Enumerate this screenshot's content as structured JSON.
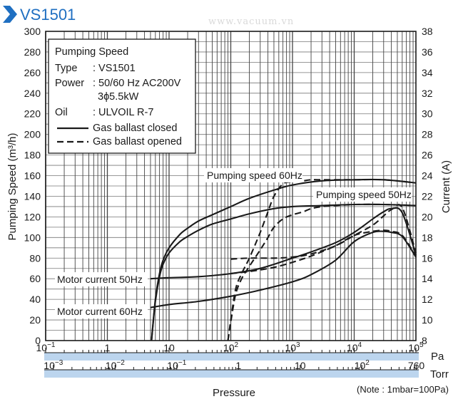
{
  "header": {
    "title": "VS1501",
    "watermark": "www.vacuum.vn"
  },
  "chart_data": {
    "type": "line",
    "title": "VS1501",
    "xlabel": "Pressure",
    "x_units_pa": "Pa",
    "x_units_torr": "Torr",
    "ylabel_left": "Pumping Speed (m³/h)",
    "ylabel_right": "Current (A)",
    "x_scale": "log",
    "xlim_pa": [
      0.1,
      100000
    ],
    "ylim_left": [
      0,
      300
    ],
    "ylim_right": [
      8,
      38
    ],
    "grid": true,
    "pa_ticks": [
      {
        "value": 0.1,
        "base": "10",
        "exp": "−1"
      },
      {
        "value": 1,
        "base": "1",
        "exp": ""
      },
      {
        "value": 10,
        "base": "10",
        "exp": ""
      },
      {
        "value": 100,
        "base": "10",
        "exp": "2"
      },
      {
        "value": 1000,
        "base": "10",
        "exp": "3"
      },
      {
        "value": 10000,
        "base": "10",
        "exp": "4"
      },
      {
        "value": 100000,
        "base": "10",
        "exp": "5"
      }
    ],
    "torr_ticks": [
      {
        "value": 0.001,
        "base": "10",
        "exp": "−3"
      },
      {
        "value": 0.01,
        "base": "10",
        "exp": "−2"
      },
      {
        "value": 0.1,
        "base": "10",
        "exp": "−1"
      },
      {
        "value": 1,
        "base": "1",
        "exp": ""
      },
      {
        "value": 10,
        "base": "10",
        "exp": ""
      },
      {
        "value": 100,
        "base": "10",
        "exp": "2"
      },
      {
        "value": 760,
        "base": "760",
        "exp": ""
      }
    ],
    "left_ticks": [
      0,
      20,
      40,
      60,
      80,
      100,
      120,
      140,
      160,
      180,
      200,
      220,
      240,
      260,
      280,
      300
    ],
    "right_ticks": [
      8,
      10,
      12,
      14,
      16,
      18,
      20,
      22,
      24,
      26,
      28,
      30,
      32,
      34,
      36,
      38
    ],
    "legend": {
      "title": "Pumping Speed",
      "rows": [
        {
          "key": "Type",
          "value": ": VS1501"
        },
        {
          "key": "Power",
          "value": ": 50/60 Hz AC200V"
        },
        {
          "key": "",
          "value": "3ϕ5.5kW"
        },
        {
          "key": "Oil",
          "value": ": ULVOIL R-7"
        }
      ],
      "entries": [
        {
          "style": "solid",
          "label": "Gas ballast closed"
        },
        {
          "style": "dashed",
          "label": "Gas ballast opened"
        }
      ]
    },
    "annotations": [
      {
        "text": "Pumping speed 60Hz"
      },
      {
        "text": "Pumping speed 50Hz"
      },
      {
        "text": "Motor current 50Hz"
      },
      {
        "text": "Motor current 60Hz"
      }
    ],
    "note": "(Note : 1mbar=100Pa)",
    "series": [
      {
        "style": "solid",
        "axis": "left",
        "x": [
          5.2,
          6,
          7,
          8,
          10,
          15,
          20,
          30,
          50,
          100,
          200,
          500,
          1000,
          3000,
          10000,
          30000,
          100000
        ],
        "y": [
          0,
          40,
          65,
          78,
          90,
          103,
          109,
          116,
          122,
          130,
          138,
          146,
          151,
          155,
          156,
          156,
          153
        ]
      },
      {
        "style": "solid",
        "axis": "left",
        "x": [
          5.2,
          6,
          7,
          8,
          10,
          15,
          20,
          30,
          50,
          100,
          200,
          500,
          1000,
          3000,
          10000,
          30000,
          100000
        ],
        "y": [
          0,
          38,
          62,
          74,
          85,
          96,
          101,
          107,
          113,
          118,
          123,
          128,
          130,
          131,
          132,
          132,
          131
        ]
      },
      {
        "style": "dashed",
        "axis": "left",
        "x": [
          90,
          100,
          120,
          150,
          200,
          300,
          400,
          500,
          700,
          1000,
          1500,
          2000,
          3000,
          5000,
          10000,
          30000,
          100000
        ],
        "y": [
          0,
          20,
          50,
          65,
          80,
          105,
          125,
          140,
          152,
          154,
          155,
          156,
          156,
          156,
          156,
          156,
          153
        ]
      },
      {
        "style": "dashed",
        "axis": "left",
        "x": [
          90,
          100,
          120,
          150,
          200,
          300,
          400,
          500,
          700,
          1000,
          1500,
          2000,
          3000,
          5000,
          10000,
          30000,
          100000
        ],
        "y": [
          0,
          18,
          45,
          60,
          72,
          88,
          100,
          110,
          118,
          122,
          125,
          128,
          130,
          131,
          132,
          132,
          131
        ]
      },
      {
        "style": "solid",
        "axis": "right",
        "x": [
          5,
          10,
          30,
          100,
          300,
          1000,
          2000,
          5000,
          10000,
          20000,
          30000,
          40000,
          60000,
          100000
        ],
        "y": [
          14,
          14.1,
          14.2,
          14.5,
          15,
          16,
          16.6,
          17.5,
          18.5,
          19.8,
          20.5,
          20.8,
          20.4,
          16.3
        ]
      },
      {
        "style": "solid",
        "axis": "right",
        "x": [
          5,
          10,
          30,
          100,
          300,
          1000,
          2000,
          5000,
          10000,
          20000,
          30000,
          40000,
          60000,
          100000
        ],
        "y": [
          11.2,
          11.5,
          11.8,
          12.3,
          12.9,
          13.7,
          14.4,
          15.8,
          17.6,
          18.5,
          18.6,
          18.5,
          18.1,
          16.1
        ]
      },
      {
        "style": "dashed",
        "axis": "right",
        "x": [
          100,
          200,
          500,
          1000,
          2000,
          5000,
          10000,
          20000,
          30000,
          40000,
          60000,
          100000
        ],
        "y": [
          15.9,
          16,
          16,
          16.1,
          16.4,
          17.2,
          18.2,
          19.2,
          20.1,
          20.7,
          20.9,
          16.5
        ]
      },
      {
        "style": "dashed",
        "axis": "right",
        "x": [
          100,
          200,
          500,
          1000,
          2000,
          5000,
          10000,
          20000,
          30000,
          40000,
          60000,
          100000
        ],
        "y": [
          14.5,
          14.7,
          15.1,
          15.6,
          16.2,
          17.2,
          18.2,
          18.6,
          18.7,
          18.6,
          18.2,
          16.2
        ]
      }
    ]
  }
}
